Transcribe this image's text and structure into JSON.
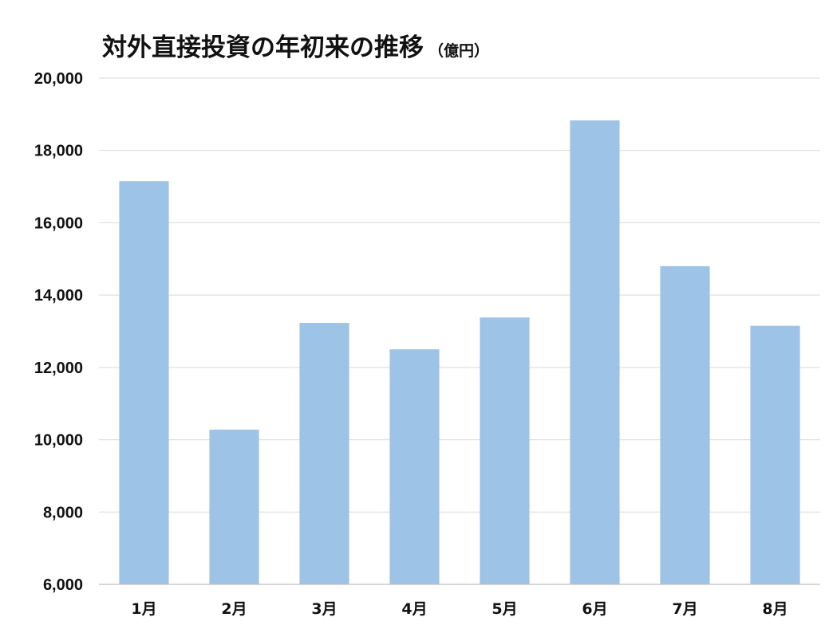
{
  "chart_data": {
    "type": "bar",
    "title": "対外直接投資の年初来の推移",
    "unit_label": "（億円）",
    "categories": [
      "1月",
      "2月",
      "3月",
      "4月",
      "5月",
      "6月",
      "7月",
      "8月"
    ],
    "values": [
      17150,
      10280,
      13230,
      12500,
      13380,
      18830,
      14800,
      13150
    ],
    "ylim": [
      6000,
      20000
    ],
    "yticks": [
      6000,
      8000,
      10000,
      12000,
      14000,
      16000,
      18000,
      20000
    ],
    "ytick_labels": [
      "6,000",
      "8,000",
      "10,000",
      "12,000",
      "14,000",
      "16,000",
      "18,000",
      "20,000"
    ],
    "grid": true,
    "bar_color": "#9dc3e6",
    "grid_color": "#d9d9d9",
    "axis_color": "#bfbfbf"
  }
}
